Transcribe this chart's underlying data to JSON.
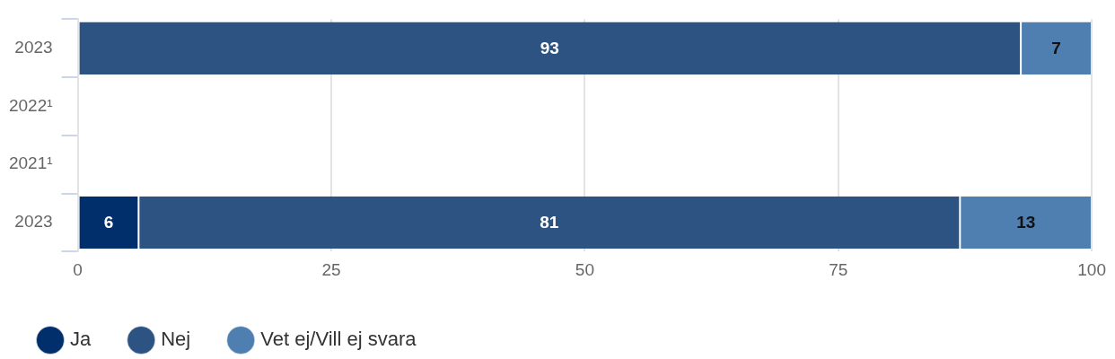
{
  "chart_data": {
    "type": "bar",
    "orientation": "horizontal",
    "stacked": true,
    "categories": [
      "2023",
      "2022¹",
      "2021¹",
      "2023"
    ],
    "series": [
      {
        "name": "Ja",
        "color": "#002f6c",
        "values": [
          0,
          null,
          null,
          6
        ],
        "value_labels": [
          null,
          null,
          null,
          "6"
        ]
      },
      {
        "name": "Nej",
        "color": "#2c5382",
        "values": [
          93,
          null,
          null,
          81
        ],
        "value_labels": [
          "93",
          null,
          null,
          "81"
        ]
      },
      {
        "name": "Vet ej/Vill ej svara",
        "color": "#4f7fb0",
        "values": [
          7,
          null,
          null,
          13
        ],
        "value_labels": [
          "7",
          null,
          null,
          "13"
        ]
      }
    ],
    "xlim": [
      0,
      100
    ],
    "xticks": [
      0,
      25,
      50,
      75,
      100
    ],
    "grid": "x",
    "legend": "bottom"
  }
}
